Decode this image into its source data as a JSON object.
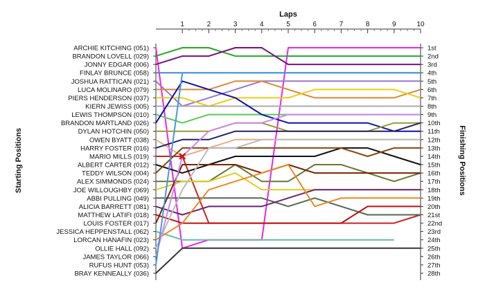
{
  "chart_data": {
    "type": "line",
    "title": "Laps",
    "ylabel_left": "Starting Positions",
    "ylabel_right": "Finishing Positions",
    "x_ticks": [
      1,
      2,
      3,
      4,
      5,
      6,
      7,
      8,
      9,
      10
    ],
    "xlim": [
      0,
      10
    ],
    "ylim": [
      1,
      28
    ],
    "drivers": [
      "ARCHIE KITCHING (051)",
      "BRANDON LOVELL (029)",
      "JONNY EDGAR (006)",
      "FINLAY BRUNCE (058)",
      "JOSHUA RATTICAN (021)",
      "LUCA MOLINARO (079)",
      "PIERS HENDERSON (037)",
      "KIERN JEWISS (005)",
      "LEWIS THOMPSON (010)",
      "BRANDON MARTLAND (026)",
      "DYLAN HOTCHIN (050)",
      "OWEN BYATT (038)",
      "HARRY FOSTER (016)",
      "MARIO MILLS (019)",
      "ALBERT CARTER (012)",
      "TEDDY WILSON (004)",
      "ALEX SIMMONDS (024)",
      "JOE WILLOUGHBY (069)",
      "ABBI PULLING (049)",
      "ALICIA BARRETT (081)",
      "MATTHEW LATIFI (018)",
      "LOUIS FOSTER (017)",
      "JESSICA HEPPENSTALL (062)",
      "LORCAN HANAFIN (023)",
      "OLLIE HALL (092)",
      "JAMES TAYLOR (066)",
      "RUFUS HUNT (053)",
      "BRAY KENNEALLY (036)"
    ],
    "finishing_labels": [
      "1st",
      "2nd",
      "3rd",
      "4th",
      "5th",
      "6th",
      "7th",
      "8th",
      "9th",
      "10th",
      "11th",
      "12th",
      "13th",
      "14th",
      "15th",
      "16th",
      "17th",
      "18th",
      "19th",
      "20th",
      "21st",
      "22nd",
      "23rd",
      "24th",
      "25th",
      "26th",
      "27th",
      "28th"
    ],
    "series": [
      {
        "color": "#ee22ee",
        "positions": [
          1,
          25,
          24,
          24,
          24,
          1,
          1,
          1,
          1,
          1,
          1
        ]
      },
      {
        "color": "#22aa22",
        "positions": [
          2,
          1,
          1,
          2,
          2,
          2,
          2,
          2,
          2,
          2,
          2
        ]
      },
      {
        "color": "#771177",
        "positions": [
          3,
          2,
          2,
          1,
          1,
          3,
          3,
          3,
          3,
          3,
          3
        ]
      },
      {
        "color": "#4488cc",
        "positions": [
          4,
          4,
          4,
          4,
          4,
          4,
          4,
          4,
          4,
          4,
          4
        ]
      },
      {
        "color": "#9977cc",
        "positions": [
          5,
          8,
          7,
          6,
          5,
          5,
          5,
          5,
          5,
          5,
          5
        ]
      },
      {
        "color": "#dd8833",
        "positions": [
          6,
          6,
          6,
          5,
          5,
          6,
          7,
          7,
          7,
          7,
          6
        ]
      },
      {
        "color": "#eecc11",
        "positions": [
          7,
          7,
          8,
          7,
          7,
          7,
          6,
          6,
          6,
          6,
          7
        ]
      },
      {
        "color": "#aaaaaa",
        "positions": [
          8,
          8,
          8,
          8,
          8,
          8,
          8,
          8,
          8,
          8,
          8
        ]
      },
      {
        "color": "#55cc55",
        "positions": [
          9,
          10,
          9,
          9,
          9,
          9,
          9,
          9,
          9,
          9,
          9
        ]
      },
      {
        "color": "#1111aa",
        "positions": [
          10,
          5,
          6,
          7,
          9,
          10,
          10,
          10,
          10,
          11,
          11
        ]
      },
      {
        "color": "#999933",
        "positions": [
          11,
          11,
          11,
          10,
          10,
          11,
          11,
          11,
          11,
          10,
          10
        ]
      },
      {
        "color": "#eeaa88",
        "positions": [
          12,
          14,
          13,
          12,
          12,
          12,
          12,
          12,
          12,
          12,
          12
        ]
      },
      {
        "color": "#222266",
        "positions": [
          13,
          12,
          12,
          11,
          11,
          11,
          11,
          11,
          11,
          11,
          10
        ]
      },
      {
        "color": "#cc2222",
        "positions": [
          14,
          14,
          22,
          22,
          22,
          22,
          22,
          22,
          22,
          22,
          21
        ]
      },
      {
        "color": "#111111",
        "positions": [
          15,
          16,
          15,
          14,
          14,
          14,
          14,
          13,
          13,
          14,
          15
        ]
      },
      {
        "color": "#884411",
        "positions": [
          16,
          13,
          13,
          13,
          13,
          13,
          13,
          13,
          14,
          13,
          13
        ]
      },
      {
        "color": "#667733",
        "positions": [
          17,
          17,
          17,
          15,
          17,
          17,
          15,
          15,
          16,
          17,
          16
        ]
      },
      {
        "color": "#ddcc22",
        "positions": [
          18,
          17,
          17,
          16,
          18,
          18,
          18,
          18,
          18,
          18,
          18
        ]
      },
      {
        "color": "#556655",
        "positions": [
          19,
          19,
          19,
          19,
          19,
          20,
          19,
          20,
          21,
          21,
          21
        ]
      },
      {
        "color": "#662277",
        "positions": [
          20,
          21,
          20,
          20,
          20,
          19,
          18,
          18,
          18,
          18,
          18
        ]
      },
      {
        "color": "#bb1111",
        "positions": [
          21,
          22,
          22,
          22,
          22,
          22,
          22,
          22,
          20,
          20,
          20
        ]
      },
      {
        "color": "#772200",
        "positions": [
          22,
          15,
          15,
          15,
          16,
          15,
          16,
          16,
          16,
          16,
          16
        ]
      },
      {
        "color": "#66bbaa",
        "positions": [
          23,
          24,
          24,
          24,
          24,
          24,
          24,
          24,
          24,
          24,
          null
        ]
      },
      {
        "color": "#ee8822",
        "positions": [
          24,
          22,
          18,
          17,
          16,
          15,
          20,
          19,
          19,
          19,
          19
        ]
      },
      {
        "color": "#bbbbbb",
        "positions": [
          25,
          18,
          13,
          13,
          12,
          12,
          12,
          12,
          12,
          12,
          12
        ]
      },
      {
        "color": "#cc88ee",
        "positions": [
          26,
          14,
          11,
          10,
          10,
          9,
          9,
          9,
          9,
          9,
          9
        ]
      },
      {
        "color": "#4499dd",
        "positions": [
          27,
          4,
          4,
          4,
          4,
          4,
          4,
          4,
          4,
          4,
          4
        ]
      },
      {
        "color": "#333333",
        "positions": [
          28,
          25,
          25,
          25,
          25,
          25,
          25,
          25,
          25,
          25,
          25
        ]
      }
    ],
    "marker": {
      "lap": 1,
      "position": 14,
      "color": "#cc1111",
      "symbol": "x"
    }
  }
}
